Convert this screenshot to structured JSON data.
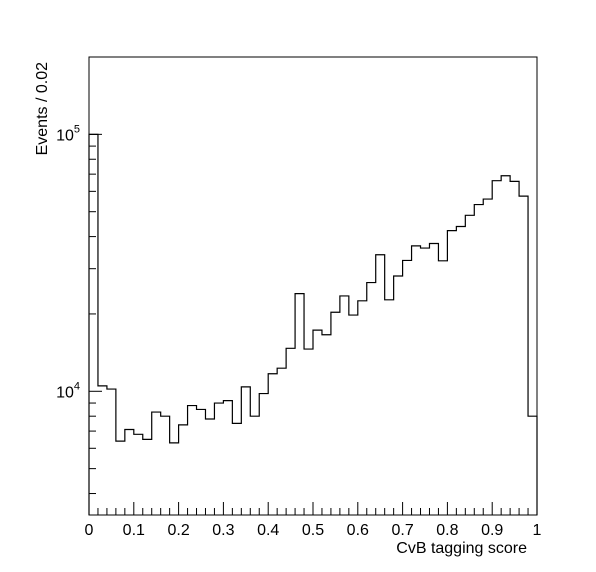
{
  "chart_data": {
    "type": "histogram",
    "xlabel": "CvB tagging score",
    "ylabel": "Events / 0.02",
    "xlim": [
      0,
      1
    ],
    "ylim": [
      3300,
      200000
    ],
    "y_scale": "log",
    "grid": false,
    "bin_width": 0.02,
    "x_tick_labels": [
      "0",
      "0.1",
      "0.2",
      "0.3",
      "0.4",
      "0.5",
      "0.6",
      "0.7",
      "0.8",
      "0.9",
      "1"
    ],
    "x_ticks": [
      0,
      0.1,
      0.2,
      0.3,
      0.4,
      0.5,
      0.6,
      0.7,
      0.8,
      0.9,
      1.0
    ],
    "y_major_ticks": [
      {
        "value": 10000,
        "base": "10",
        "exp": "4"
      },
      {
        "value": 100000,
        "base": "10",
        "exp": "5"
      }
    ],
    "bin_edges_start": 0,
    "values": [
      100000,
      10500,
      10200,
      6400,
      7100,
      6800,
      6500,
      8300,
      8000,
      6300,
      7400,
      8800,
      8500,
      7800,
      9000,
      9200,
      7500,
      10400,
      8000,
      9800,
      11700,
      12300,
      14700,
      24000,
      14600,
      17300,
      16600,
      20300,
      23500,
      19800,
      22500,
      26500,
      34000,
      22700,
      28100,
      32300,
      36800,
      36100,
      37600,
      32200,
      42200,
      43800,
      48400,
      53300,
      56000,
      66000,
      69000,
      65600,
      57500,
      8000
    ]
  }
}
